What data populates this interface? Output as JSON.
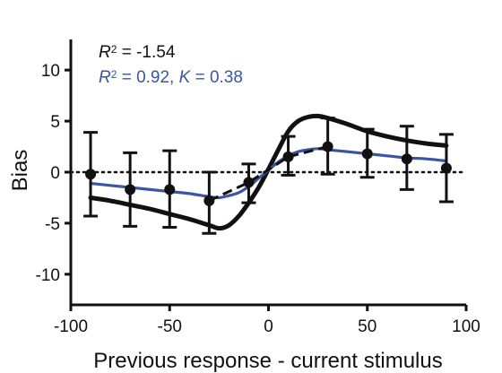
{
  "chart_data": {
    "type": "line",
    "title": "",
    "xlabel": "Previous response - current stimulus",
    "ylabel": "Bias",
    "xlim": [
      -100,
      100
    ],
    "ylim": [
      -13,
      13
    ],
    "xticks": [
      -100,
      -50,
      0,
      50,
      100
    ],
    "yticks": [
      -10,
      -5,
      0,
      5,
      10
    ],
    "grid": false,
    "annotations": [
      {
        "parts": [
          {
            "t": "R",
            "i": true
          },
          {
            "t": "2",
            "sup": true
          },
          {
            "t": " = -1.54"
          }
        ],
        "color": "#111111"
      },
      {
        "parts": [
          {
            "t": "R",
            "i": true
          },
          {
            "t": "2",
            "sup": true
          },
          {
            "t": " = 0.92, "
          },
          {
            "t": "K",
            "i": true
          },
          {
            "t": " = 0.38"
          }
        ],
        "color": "#3a55a4"
      }
    ],
    "series": [
      {
        "type": "errorbar-points",
        "color": "#111111",
        "x": [
          -90,
          -70,
          -50,
          -30,
          -10,
          10,
          30,
          50,
          70,
          90
        ],
        "y": [
          -0.2,
          -1.7,
          -1.7,
          -2.8,
          -1.0,
          1.5,
          2.5,
          1.8,
          1.3,
          0.4
        ],
        "err_low": [
          -4.3,
          -5.3,
          -5.4,
          -6.0,
          -3.0,
          -0.3,
          -0.2,
          -0.5,
          -1.7,
          -2.9
        ],
        "err_high": [
          3.9,
          1.9,
          2.1,
          0.0,
          0.8,
          3.5,
          5.3,
          4.2,
          4.5,
          3.7
        ]
      },
      {
        "type": "dashed-line",
        "color": "#111111",
        "x": [
          -30,
          -10,
          10,
          30
        ],
        "y": [
          -2.8,
          -1.0,
          1.5,
          2.5
        ]
      },
      {
        "type": "fit-curve",
        "color": "#111111",
        "x": [
          -90,
          -80,
          -70,
          -60,
          -50,
          -40,
          -30,
          -25,
          -20,
          -15,
          -10,
          -5,
          0,
          5,
          10,
          15,
          20,
          25,
          30,
          40,
          50,
          60,
          70,
          80,
          90
        ],
        "y": [
          -2.5,
          -2.8,
          -3.2,
          -3.6,
          -4.1,
          -4.6,
          -5.2,
          -5.5,
          -5.2,
          -4.3,
          -3.0,
          -1.5,
          0.3,
          2.2,
          4.0,
          5.0,
          5.4,
          5.5,
          5.3,
          4.7,
          4.0,
          3.5,
          3.1,
          2.8,
          2.6
        ]
      },
      {
        "type": "fit-curve",
        "color": "#3a55a4",
        "x": [
          -90,
          -80,
          -70,
          -60,
          -50,
          -40,
          -30,
          -25,
          -20,
          -15,
          -10,
          -5,
          0,
          5,
          10,
          15,
          20,
          25,
          30,
          40,
          50,
          60,
          70,
          80,
          90
        ],
        "y": [
          -1.1,
          -1.3,
          -1.5,
          -1.7,
          -1.9,
          -2.1,
          -2.4,
          -2.5,
          -2.3,
          -2.0,
          -1.4,
          -0.6,
          0.2,
          1.0,
          1.6,
          2.0,
          2.2,
          2.3,
          2.2,
          2.0,
          1.8,
          1.6,
          1.4,
          1.3,
          1.1
        ]
      }
    ]
  }
}
